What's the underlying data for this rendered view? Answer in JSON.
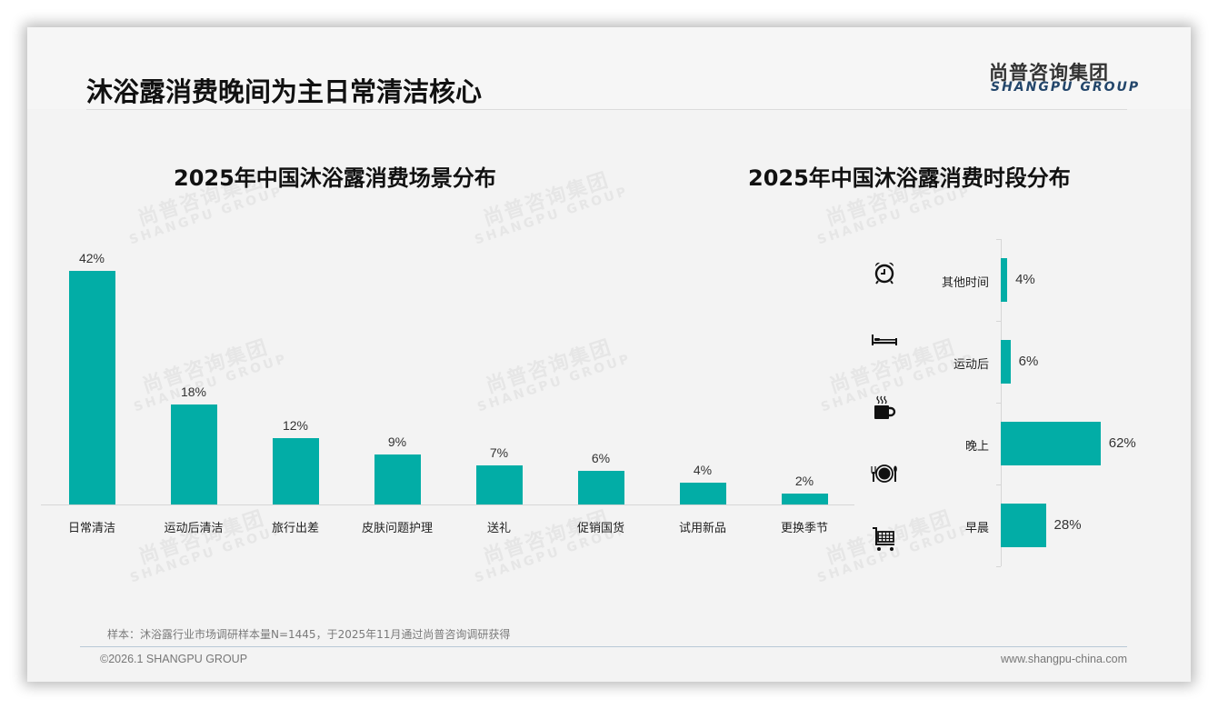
{
  "header": {
    "title": "沐浴露消费晚间为主日常清洁核心",
    "logo_cn": "尚普咨询集团",
    "logo_en": "SHANGPU GROUP"
  },
  "watermark": {
    "cn": "尚普咨询集团",
    "en": "SHANGPU GROUP"
  },
  "colors": {
    "bar": "#02ada6",
    "logo_en": "#23466b",
    "title": "#111111"
  },
  "chart_data": [
    {
      "type": "bar",
      "title": "2025年中国沐浴露消费场景分布",
      "xlabel": "",
      "ylabel": "",
      "categories": [
        "日常清洁",
        "运动后清洁",
        "旅行出差",
        "皮肤问题护理",
        "送礼",
        "促销国货",
        "试用新品",
        "更换季节"
      ],
      "values": [
        42,
        18,
        12,
        9,
        7,
        6,
        4,
        2
      ],
      "labels": [
        "42%",
        "18%",
        "12%",
        "9%",
        "7%",
        "6%",
        "4%",
        "2%"
      ],
      "unit": "%",
      "grid": false,
      "legend": null,
      "ylim": [
        0,
        45
      ]
    },
    {
      "type": "bar",
      "orientation": "horizontal",
      "title": "2025年中国沐浴露消费时段分布",
      "categories": [
        "其他时间",
        "运动后",
        "晚上",
        "早晨"
      ],
      "values": [
        4,
        6,
        62,
        28
      ],
      "labels": [
        "4%",
        "6%",
        "62%",
        "28%"
      ],
      "icons": [
        "alarm-clock-icon",
        "bed-icon",
        "hot-mug-icon",
        "plate-cutlery-icon",
        "shopping-cart-icon"
      ],
      "unit": "%",
      "grid": false,
      "legend": null,
      "xlim": [
        0,
        70
      ]
    }
  ],
  "footer": {
    "note": "样本：沐浴露行业市场调研样本量N=1445，于2025年11月通过尚普咨询调研获得",
    "copyright": "©2026.1 SHANGPU GROUP",
    "website": "www.shangpu-china.com"
  }
}
